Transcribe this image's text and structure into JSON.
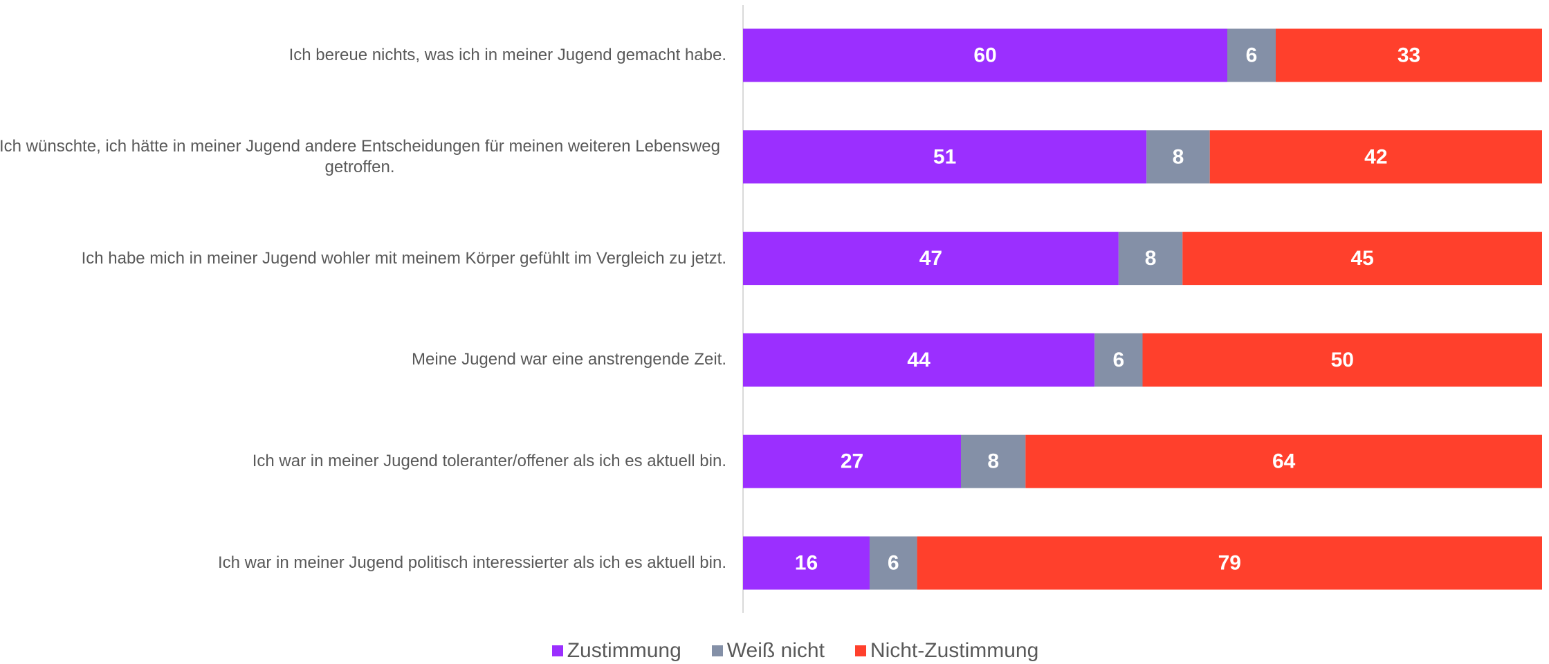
{
  "chart_data": {
    "type": "stacked_bar_horizontal",
    "categories": [
      "Ich bereue nichts, was ich in meiner Jugend gemacht habe.",
      "Ich wünschte, ich hätte in meiner Jugend andere Entscheidungen für meinen weiteren Lebensweg getroffen.",
      "Ich habe mich in meiner Jugend wohler mit meinem Körper gefühlt im Vergleich zu jetzt.",
      "Meine Jugend war eine anstrengende Zeit.",
      "Ich war in meiner Jugend toleranter/offener als ich es aktuell bin.",
      "Ich war in meiner Jugend politisch interessierter als ich es aktuell bin."
    ],
    "series": [
      {
        "name": "Zustimmung",
        "color": "#9b2fff",
        "values": [
          60,
          51,
          47,
          44,
          27,
          16
        ]
      },
      {
        "name": "Weiß nicht",
        "color": "#8490a7",
        "values": [
          6,
          8,
          8,
          6,
          8,
          6
        ]
      },
      {
        "name": "Nicht-Zustimmung",
        "color": "#ff402c",
        "values": [
          33,
          42,
          45,
          50,
          64,
          79
        ]
      }
    ],
    "legend": "bottom"
  }
}
